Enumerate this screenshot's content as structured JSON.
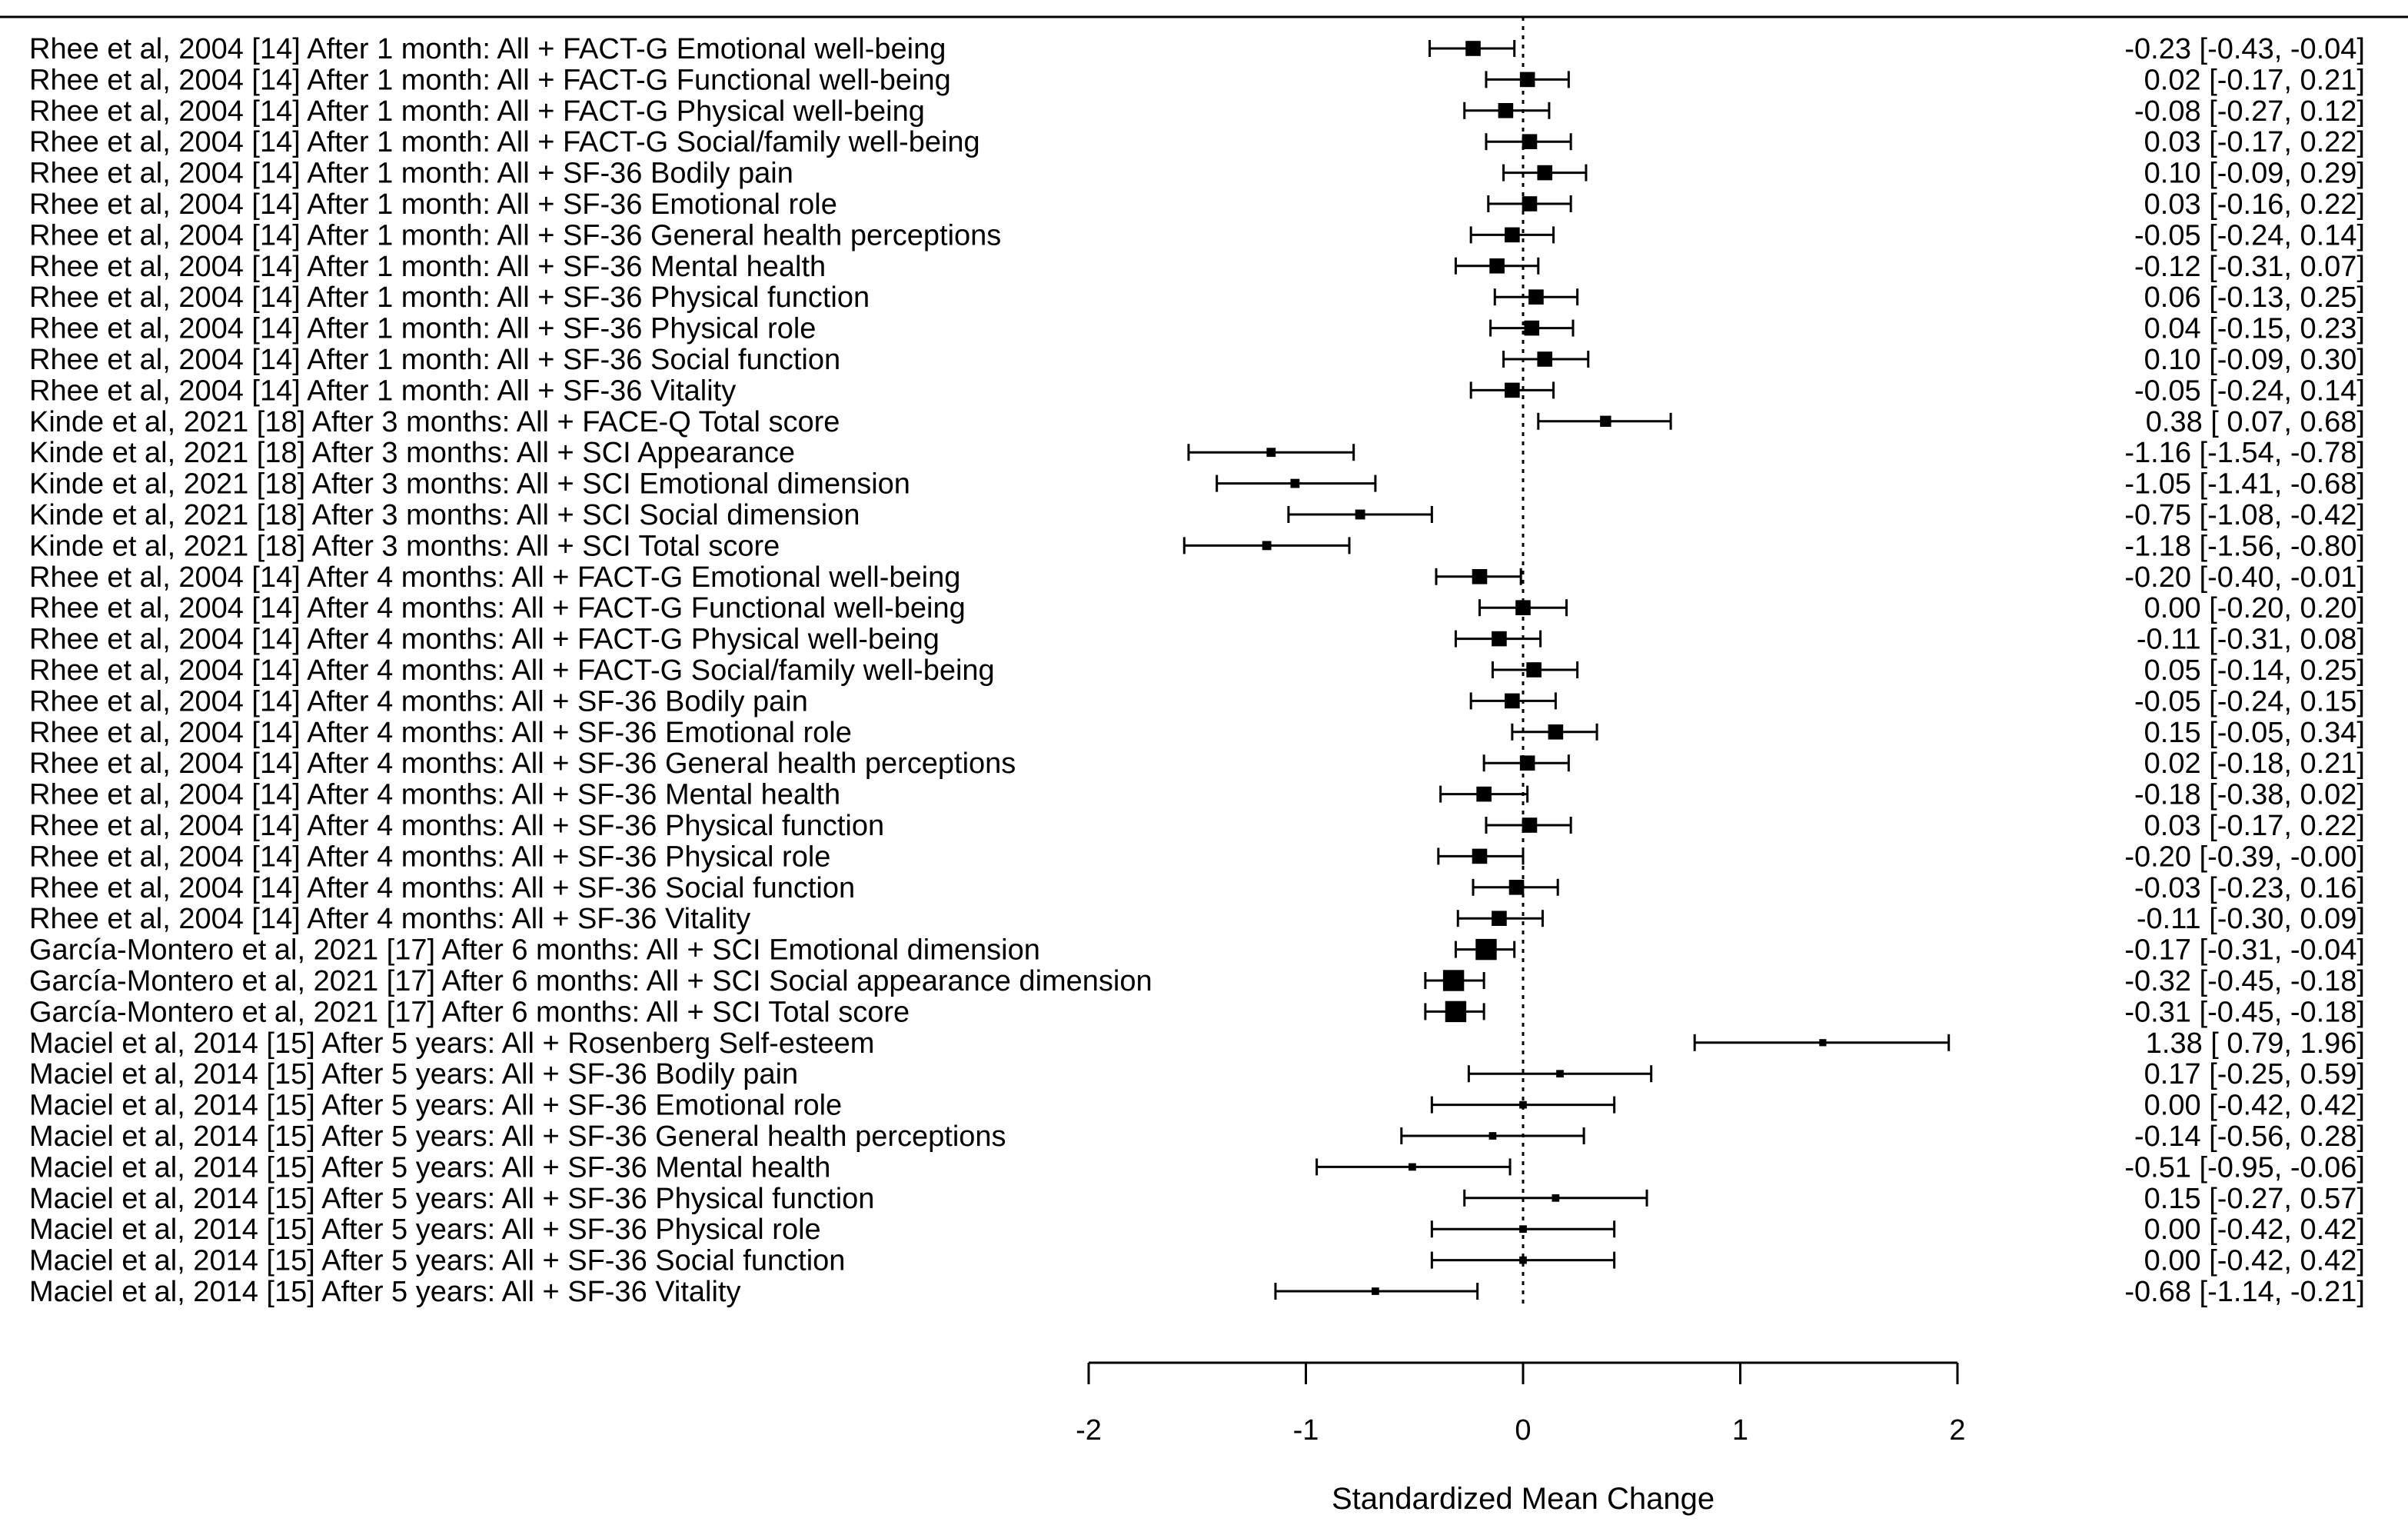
{
  "chart_data": {
    "type": "forest",
    "title": "",
    "xlabel": "Standardized Mean Change",
    "ylabel": "",
    "xlim": [
      -2,
      2
    ],
    "xticks": [
      "-2",
      "-1",
      "0",
      "1",
      "2"
    ],
    "xtick_values": [
      -2,
      -1,
      0,
      1,
      2
    ],
    "reference_line": 0,
    "rows": [
      {
        "label": "Rhee  et al, 2004 [14] After 1 month: All + FACT-G Emotional well-being",
        "est": -0.23,
        "lo": -0.43,
        "hi": -0.04,
        "text": "-0.23 [-0.43, -0.04]",
        "weight": 3
      },
      {
        "label": "Rhee  et al, 2004 [14] After 1 month: All + FACT-G Functional well-being",
        "est": 0.02,
        "lo": -0.17,
        "hi": 0.21,
        "text": "0.02 [-0.17,  0.21]",
        "weight": 3
      },
      {
        "label": "Rhee  et al, 2004 [14] After 1 month: All + FACT-G Physical well-being",
        "est": -0.08,
        "lo": -0.27,
        "hi": 0.12,
        "text": "-0.08 [-0.27,  0.12]",
        "weight": 3
      },
      {
        "label": "Rhee  et al, 2004 [14] After 1 month: All + FACT-G Social/family well-being",
        "est": 0.03,
        "lo": -0.17,
        "hi": 0.22,
        "text": "0.03 [-0.17,  0.22]",
        "weight": 3
      },
      {
        "label": "Rhee  et al, 2004 [14] After 1 month: All + SF-36 Bodily pain",
        "est": 0.1,
        "lo": -0.09,
        "hi": 0.29,
        "text": "0.10 [-0.09,  0.29]",
        "weight": 3
      },
      {
        "label": "Rhee  et al, 2004 [14] After 1 month: All + SF-36 Emotional role",
        "est": 0.03,
        "lo": -0.16,
        "hi": 0.22,
        "text": "0.03 [-0.16,  0.22]",
        "weight": 3
      },
      {
        "label": "Rhee  et al, 2004 [14] After 1 month: All + SF-36 General health perceptions",
        "est": -0.05,
        "lo": -0.24,
        "hi": 0.14,
        "text": "-0.05 [-0.24,  0.14]",
        "weight": 3
      },
      {
        "label": "Rhee  et al, 2004 [14] After 1 month: All + SF-36 Mental health",
        "est": -0.12,
        "lo": -0.31,
        "hi": 0.07,
        "text": "-0.12 [-0.31,  0.07]",
        "weight": 3
      },
      {
        "label": "Rhee  et al, 2004 [14] After 1 month: All + SF-36 Physical function",
        "est": 0.06,
        "lo": -0.13,
        "hi": 0.25,
        "text": "0.06 [-0.13,  0.25]",
        "weight": 3
      },
      {
        "label": "Rhee  et al, 2004 [14] After 1 month: All + SF-36 Physical role",
        "est": 0.04,
        "lo": -0.15,
        "hi": 0.23,
        "text": "0.04 [-0.15,  0.23]",
        "weight": 3
      },
      {
        "label": "Rhee  et al, 2004 [14] After 1 month: All + SF-36 Social function",
        "est": 0.1,
        "lo": -0.09,
        "hi": 0.3,
        "text": "0.10 [-0.09,  0.30]",
        "weight": 3
      },
      {
        "label": "Rhee  et al, 2004 [14] After 1 month: All + SF-36 Vitality",
        "est": -0.05,
        "lo": -0.24,
        "hi": 0.14,
        "text": "-0.05 [-0.24,  0.14]",
        "weight": 3
      },
      {
        "label": "Kinde et al, 2021 [18] After 3 months: All + FACE-Q Total score",
        "est": 0.38,
        "lo": 0.07,
        "hi": 0.68,
        "text": "0.38 [ 0.07,  0.68]",
        "weight": 2
      },
      {
        "label": "Kinde et al, 2021 [18] After 3 months: All + SCI Appearance",
        "est": -1.16,
        "lo": -1.54,
        "hi": -0.78,
        "text": "-1.16 [-1.54, -0.78]",
        "weight": 1.5
      },
      {
        "label": "Kinde et al, 2021 [18] After 3 months: All + SCI Emotional dimension",
        "est": -1.05,
        "lo": -1.41,
        "hi": -0.68,
        "text": "-1.05 [-1.41, -0.68]",
        "weight": 1.5
      },
      {
        "label": "Kinde et al, 2021 [18] After 3 months: All + SCI Social dimension",
        "est": -0.75,
        "lo": -1.08,
        "hi": -0.42,
        "text": "-0.75 [-1.08, -0.42]",
        "weight": 1.7
      },
      {
        "label": "Kinde et al, 2021 [18] After 3 months: All + SCI Total score",
        "est": -1.18,
        "lo": -1.56,
        "hi": -0.8,
        "text": "-1.18 [-1.56, -0.80]",
        "weight": 1.5
      },
      {
        "label": "Rhee  et al, 2004 [14] After 4 months: All + FACT-G Emotional well-being",
        "est": -0.2,
        "lo": -0.4,
        "hi": -0.01,
        "text": "-0.20 [-0.40, -0.01]",
        "weight": 3
      },
      {
        "label": "Rhee  et al, 2004 [14] After 4 months: All + FACT-G Functional well-being",
        "est": 0.0,
        "lo": -0.2,
        "hi": 0.2,
        "text": "0.00 [-0.20,  0.20]",
        "weight": 3
      },
      {
        "label": "Rhee  et al, 2004 [14] After 4 months: All + FACT-G Physical well-being",
        "est": -0.11,
        "lo": -0.31,
        "hi": 0.08,
        "text": "-0.11 [-0.31,  0.08]",
        "weight": 3
      },
      {
        "label": "Rhee  et al, 2004 [14] After 4 months: All + FACT-G Social/family well-being",
        "est": 0.05,
        "lo": -0.14,
        "hi": 0.25,
        "text": "0.05 [-0.14,  0.25]",
        "weight": 3
      },
      {
        "label": "Rhee  et al, 2004 [14] After 4 months: All + SF-36 Bodily pain",
        "est": -0.05,
        "lo": -0.24,
        "hi": 0.15,
        "text": "-0.05 [-0.24,  0.15]",
        "weight": 3
      },
      {
        "label": "Rhee  et al, 2004 [14] After 4 months: All + SF-36 Emotional role",
        "est": 0.15,
        "lo": -0.05,
        "hi": 0.34,
        "text": "0.15 [-0.05,  0.34]",
        "weight": 3
      },
      {
        "label": "Rhee  et al, 2004 [14] After 4 months: All + SF-36 General health perceptions",
        "est": 0.02,
        "lo": -0.18,
        "hi": 0.21,
        "text": "0.02 [-0.18,  0.21]",
        "weight": 3
      },
      {
        "label": "Rhee  et al, 2004 [14] After 4 months: All + SF-36 Mental health",
        "est": -0.18,
        "lo": -0.38,
        "hi": 0.02,
        "text": "-0.18 [-0.38,  0.02]",
        "weight": 3
      },
      {
        "label": "Rhee  et al, 2004 [14] After 4 months: All + SF-36 Physical function",
        "est": 0.03,
        "lo": -0.17,
        "hi": 0.22,
        "text": "0.03 [-0.17,  0.22]",
        "weight": 3
      },
      {
        "label": "Rhee  et al, 2004 [14] After 4 months: All + SF-36 Physical role",
        "est": -0.2,
        "lo": -0.39,
        "hi": -0.0,
        "text": "-0.20 [-0.39, -0.00]",
        "weight": 3
      },
      {
        "label": "Rhee  et al, 2004 [14] After 4 months: All + SF-36 Social function",
        "est": -0.03,
        "lo": -0.23,
        "hi": 0.16,
        "text": "-0.03 [-0.23,  0.16]",
        "weight": 3
      },
      {
        "label": "Rhee  et al, 2004 [14] After 4 months: All + SF-36 Vitality",
        "est": -0.11,
        "lo": -0.3,
        "hi": 0.09,
        "text": "-0.11 [-0.30,  0.09]",
        "weight": 3
      },
      {
        "label": "García-Montero  et al, 2021 [17] After 6 months: All + SCI Emotional dimension",
        "est": -0.17,
        "lo": -0.31,
        "hi": -0.04,
        "text": "-0.17 [-0.31, -0.04]",
        "weight": 4.5
      },
      {
        "label": "García-Montero  et al, 2021 [17] After 6 months: All + SCI Social appearance dimension",
        "est": -0.32,
        "lo": -0.45,
        "hi": -0.18,
        "text": "-0.32 [-0.45, -0.18]",
        "weight": 4.5
      },
      {
        "label": "García-Montero  et al, 2021 [17] After 6 months: All + SCI Total score",
        "est": -0.31,
        "lo": -0.45,
        "hi": -0.18,
        "text": "-0.31 [-0.45, -0.18]",
        "weight": 4.5
      },
      {
        "label": "Maciel et al,  2014 [15] After 5 years: All + Rosenberg Self-esteem",
        "est": 1.38,
        "lo": 0.79,
        "hi": 1.96,
        "text": "1.38 [ 0.79,  1.96]",
        "weight": 1
      },
      {
        "label": "Maciel et al,  2014 [15] After 5 years: All + SF-36 Bodily pain",
        "est": 0.17,
        "lo": -0.25,
        "hi": 0.59,
        "text": "0.17 [-0.25,  0.59]",
        "weight": 1.1
      },
      {
        "label": "Maciel et al,  2014 [15] After 5 years: All + SF-36 Emotional role",
        "est": 0.0,
        "lo": -0.42,
        "hi": 0.42,
        "text": "0.00 [-0.42,  0.42]",
        "weight": 1.1
      },
      {
        "label": "Maciel et al,  2014 [15] After 5 years: All + SF-36 General health perceptions",
        "est": -0.14,
        "lo": -0.56,
        "hi": 0.28,
        "text": "-0.14 [-0.56,  0.28]",
        "weight": 1.1
      },
      {
        "label": "Maciel et al,  2014 [15] After 5 years: All + SF-36 Mental health",
        "est": -0.51,
        "lo": -0.95,
        "hi": -0.06,
        "text": "-0.51 [-0.95, -0.06]",
        "weight": 1.1
      },
      {
        "label": "Maciel et al,  2014 [15] After 5 years: All + SF-36 Physical function",
        "est": 0.15,
        "lo": -0.27,
        "hi": 0.57,
        "text": "0.15 [-0.27,  0.57]",
        "weight": 1.1
      },
      {
        "label": "Maciel et al,  2014 [15] After 5 years: All + SF-36 Physical role",
        "est": 0.0,
        "lo": -0.42,
        "hi": 0.42,
        "text": "0.00 [-0.42,  0.42]",
        "weight": 1.1
      },
      {
        "label": "Maciel et al,  2014 [15] After 5 years: All + SF-36 Social function",
        "est": 0.0,
        "lo": -0.42,
        "hi": 0.42,
        "text": "0.00 [-0.42,  0.42]",
        "weight": 1.1
      },
      {
        "label": "Maciel et al,  2014 [15] After 5 years: All + SF-36 Vitality",
        "est": -0.68,
        "lo": -1.14,
        "hi": -0.21,
        "text": "-0.68 [-1.14, -0.21]",
        "weight": 1.1
      }
    ],
    "colors": {
      "marks": "#000000",
      "background": "#ffffff"
    }
  }
}
